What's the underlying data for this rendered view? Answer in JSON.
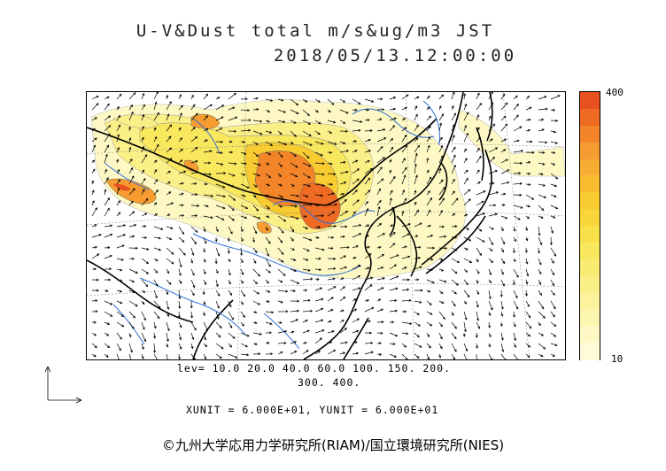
{
  "title": {
    "line1": "U-V&Dust total m/s&ug/m3 JST",
    "line2": "2018/05/13.12:00:00"
  },
  "colorbar": {
    "max_label": "400",
    "min_label": "10",
    "colors": [
      "#e8501e",
      "#ef6a22",
      "#f3842a",
      "#f69c30",
      "#f7ad31",
      "#f8bd2e",
      "#f8cb30",
      "#f8d63a",
      "#f8e04a",
      "#f9e75e",
      "#faec72",
      "#fbf088",
      "#fcf39c",
      "#fdf6b0",
      "#fef9c4",
      "#fffbd8"
    ]
  },
  "contour_levels": {
    "line1": "lev= 10.0 20.0 40.0 60.0 100. 150. 200.",
    "line2": "300. 400."
  },
  "units_text": "XUNIT = 6.000E+01, YUNIT = 6.000E+01",
  "credit": "©九州大学応用力学研究所(RIAM)/国立環境研究所(NIES)"
}
